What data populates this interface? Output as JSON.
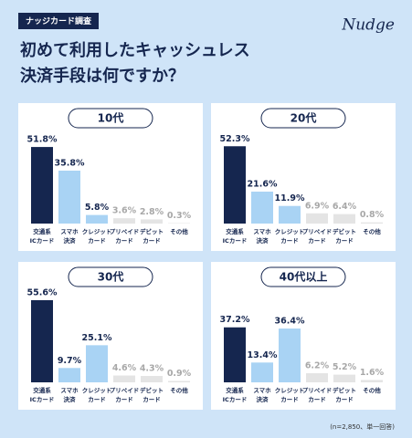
{
  "header": {
    "tag": "ナッジカード調査",
    "logo": "Nudge",
    "title": [
      "初めて利用したキャッシュレス",
      "決済手段は何ですか？"
    ]
  },
  "footnote": "(n=2,850、単一回答)",
  "chart_data": [
    {
      "type": "bar",
      "title": "10代",
      "categories": [
        [
          "交通系",
          "ICカード"
        ],
        [
          "スマホ",
          "決済"
        ],
        [
          "クレジット",
          "カード"
        ],
        [
          "プリペイド",
          "カード"
        ],
        [
          "デビット",
          "カード"
        ],
        [
          "その他"
        ]
      ],
      "values": [
        51.8,
        35.8,
        5.8,
        3.6,
        2.8,
        0.3
      ],
      "value_labels": [
        "51.8%",
        "35.8%",
        "5.8%",
        "3.6%",
        "2.8%",
        "0.3%"
      ],
      "colors": [
        "#15264f",
        "#a9d3f4",
        "#a9d3f4",
        "#e4e4e4",
        "#e4e4e4",
        "#e4e4e4"
      ]
    },
    {
      "type": "bar",
      "title": "20代",
      "categories": [
        [
          "交通系",
          "ICカード"
        ],
        [
          "スマホ",
          "決済"
        ],
        [
          "クレジット",
          "カード"
        ],
        [
          "プリペイド",
          "カード"
        ],
        [
          "デビット",
          "カード"
        ],
        [
          "その他"
        ]
      ],
      "values": [
        52.3,
        21.6,
        11.9,
        6.9,
        6.4,
        0.8
      ],
      "value_labels": [
        "52.3%",
        "21.6%",
        "11.9%",
        "6.9%",
        "6.4%",
        "0.8%"
      ],
      "colors": [
        "#15264f",
        "#a9d3f4",
        "#a9d3f4",
        "#e4e4e4",
        "#e4e4e4",
        "#e4e4e4"
      ]
    },
    {
      "type": "bar",
      "title": "30代",
      "categories": [
        [
          "交通系",
          "ICカード"
        ],
        [
          "スマホ",
          "決済"
        ],
        [
          "クレジット",
          "カード"
        ],
        [
          "プリペイド",
          "カード"
        ],
        [
          "デビット",
          "カード"
        ],
        [
          "その他"
        ]
      ],
      "values": [
        55.6,
        9.7,
        25.1,
        4.6,
        4.3,
        0.9
      ],
      "value_labels": [
        "55.6%",
        "9.7%",
        "25.1%",
        "4.6%",
        "4.3%",
        "0.9%"
      ],
      "colors": [
        "#15264f",
        "#a9d3f4",
        "#a9d3f4",
        "#e4e4e4",
        "#e4e4e4",
        "#e4e4e4"
      ]
    },
    {
      "type": "bar",
      "title": "40代以上",
      "categories": [
        [
          "交通系",
          "ICカード"
        ],
        [
          "スマホ",
          "決済"
        ],
        [
          "クレジット",
          "カード"
        ],
        [
          "プリペイド",
          "カード"
        ],
        [
          "デビット",
          "カード"
        ],
        [
          "その他"
        ]
      ],
      "values": [
        37.2,
        13.4,
        36.4,
        6.2,
        5.2,
        1.6
      ],
      "value_labels": [
        "37.2%",
        "13.4%",
        "36.4%",
        "6.2%",
        "5.2%",
        "1.6%"
      ],
      "colors": [
        "#15264f",
        "#a9d3f4",
        "#a9d3f4",
        "#e4e4e4",
        "#e4e4e4",
        "#e4e4e4"
      ]
    }
  ]
}
